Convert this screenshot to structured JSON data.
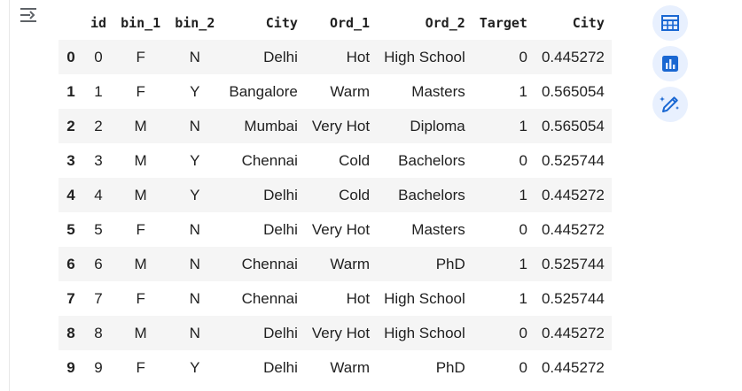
{
  "table": {
    "columns": [
      "id",
      "bin_1",
      "bin_2",
      "City",
      "Ord_1",
      "Ord_2",
      "Target",
      "City"
    ],
    "rows": [
      {
        "index": "0",
        "cells": [
          "0",
          "F",
          "N",
          "Delhi",
          "Hot",
          "High School",
          "0",
          "0.445272"
        ]
      },
      {
        "index": "1",
        "cells": [
          "1",
          "F",
          "Y",
          "Bangalore",
          "Warm",
          "Masters",
          "1",
          "0.565054"
        ]
      },
      {
        "index": "2",
        "cells": [
          "2",
          "M",
          "N",
          "Mumbai",
          "Very Hot",
          "Diploma",
          "1",
          "0.565054"
        ]
      },
      {
        "index": "3",
        "cells": [
          "3",
          "M",
          "Y",
          "Chennai",
          "Cold",
          "Bachelors",
          "0",
          "0.525744"
        ]
      },
      {
        "index": "4",
        "cells": [
          "4",
          "M",
          "Y",
          "Delhi",
          "Cold",
          "Bachelors",
          "1",
          "0.445272"
        ]
      },
      {
        "index": "5",
        "cells": [
          "5",
          "F",
          "N",
          "Delhi",
          "Very Hot",
          "Masters",
          "0",
          "0.445272"
        ]
      },
      {
        "index": "6",
        "cells": [
          "6",
          "M",
          "N",
          "Chennai",
          "Warm",
          "PhD",
          "1",
          "0.525744"
        ]
      },
      {
        "index": "7",
        "cells": [
          "7",
          "F",
          "N",
          "Chennai",
          "Hot",
          "High School",
          "1",
          "0.525744"
        ]
      },
      {
        "index": "8",
        "cells": [
          "8",
          "M",
          "N",
          "Delhi",
          "Very Hot",
          "High School",
          "0",
          "0.445272"
        ]
      },
      {
        "index": "9",
        "cells": [
          "9",
          "F",
          "Y",
          "Delhi",
          "Warm",
          "PhD",
          "0",
          "0.445272"
        ]
      }
    ]
  },
  "actions": {
    "items": [
      {
        "name": "table-view-button",
        "icon": "table-icon"
      },
      {
        "name": "chart-suggestions-button",
        "icon": "bar-chart-icon"
      },
      {
        "name": "generate-code-button",
        "icon": "magic-pen-icon"
      }
    ],
    "accent_color": "#1967d2",
    "button_bg": "#e8f0fe"
  }
}
